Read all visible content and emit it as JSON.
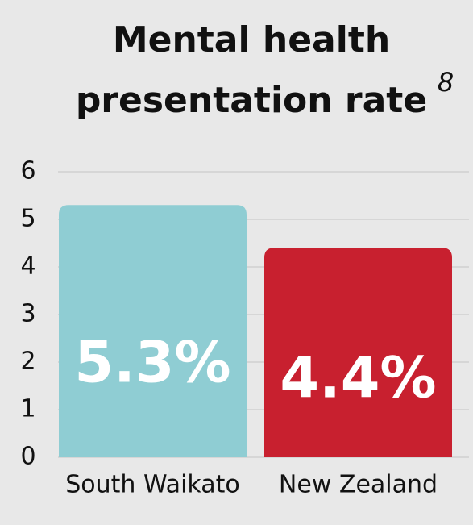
{
  "chart_data": {
    "type": "bar",
    "title_lines": [
      "Mental health",
      "presentation rate"
    ],
    "title_footnote": "8",
    "categories": [
      "South Waikato",
      "New Zealand"
    ],
    "values": [
      5.3,
      4.4
    ],
    "value_labels": [
      "5.3%",
      "4.4%"
    ],
    "colors": [
      "#8fcdd3",
      "#c8202f"
    ],
    "ylim": [
      0,
      6
    ],
    "yticks": [
      0,
      1,
      2,
      3,
      4,
      5,
      6
    ],
    "grid": true
  }
}
